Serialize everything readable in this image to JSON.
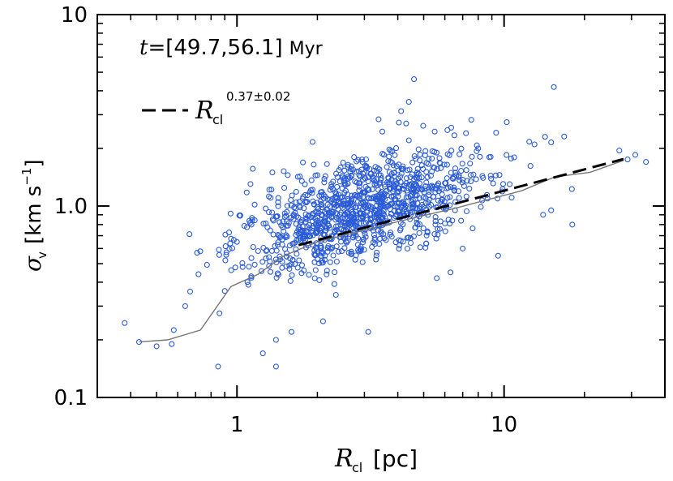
{
  "chart_data": {
    "type": "scatter",
    "title": "",
    "xlabel": {
      "symbol": "R",
      "subscript": "cl",
      "unit": "[pc]"
    },
    "ylabel": {
      "symbol": "σ",
      "subscript": "v",
      "unit_prefix": "[km s",
      "unit_exp": "−1",
      "unit_suffix": "]"
    },
    "xscale": "log",
    "yscale": "log",
    "xlim": [
      0.3,
      40
    ],
    "ylim": [
      0.1,
      10
    ],
    "x_ticks": [
      {
        "value": 1,
        "label": "1"
      },
      {
        "value": 10,
        "label": "10"
      }
    ],
    "y_ticks": [
      {
        "value": 0.1,
        "label": "0.1"
      },
      {
        "value": 1,
        "label": "1.0"
      },
      {
        "value": 10,
        "label": "10"
      }
    ],
    "grid": false,
    "annotation": {
      "prefix": "t",
      "equals": "=",
      "range": "[49.7,56.1]",
      "unit": "Myr"
    },
    "legend": {
      "position": "top-left",
      "entries": [
        {
          "symbol": "R",
          "subscript": "cl",
          "superscript": "0.37±0.02",
          "style": "dashed"
        }
      ]
    },
    "series": [
      {
        "name": "clumps",
        "style": "scatter",
        "marker": "open-circle",
        "color": "#2a5bd7",
        "generator": {
          "count": 1150,
          "log10_x_mean": 0.47,
          "log10_x_sd": 0.22,
          "log10_y_at_x1": -0.19,
          "slope": 0.37,
          "log10_y_scatter_sd": 0.13,
          "seed": 9
        },
        "points": [
          [
            0.38,
            0.245
          ],
          [
            0.43,
            0.195
          ],
          [
            0.5,
            0.185
          ],
          [
            0.57,
            0.19
          ],
          [
            0.58,
            0.225
          ],
          [
            0.64,
            0.3
          ],
          [
            0.85,
            0.145
          ],
          [
            0.86,
            0.275
          ],
          [
            0.9,
            0.36
          ],
          [
            1.0,
            0.65
          ],
          [
            1.05,
            0.48
          ],
          [
            1.25,
            0.17
          ],
          [
            1.4,
            0.145
          ],
          [
            1.4,
            0.2
          ],
          [
            1.55,
            1.45
          ],
          [
            1.6,
            0.22
          ],
          [
            1.75,
            1.35
          ],
          [
            2.0,
            1.45
          ],
          [
            2.1,
            0.25
          ],
          [
            2.6,
            1.6
          ],
          [
            3.1,
            0.22
          ],
          [
            3.5,
            2.45
          ],
          [
            4.3,
            2.7
          ],
          [
            4.4,
            3.5
          ],
          [
            4.6,
            4.6
          ],
          [
            5.5,
            2.45
          ],
          [
            5.6,
            0.42
          ],
          [
            6.3,
            0.45
          ],
          [
            7.0,
            0.6
          ],
          [
            7.2,
            2.4
          ],
          [
            8.0,
            2.0
          ],
          [
            8.8,
            1.8
          ],
          [
            9.5,
            0.55
          ],
          [
            10.5,
            1.3
          ],
          [
            13.0,
            2.1
          ],
          [
            14.0,
            0.9
          ],
          [
            15.0,
            2.15
          ],
          [
            15.0,
            0.95
          ],
          [
            18.0,
            0.8
          ],
          [
            27.0,
            1.95
          ],
          [
            29.0,
            1.75
          ],
          [
            31.0,
            1.85
          ],
          [
            34.0,
            1.7
          ]
        ]
      },
      {
        "name": "median",
        "style": "line",
        "color": "#777777",
        "x": [
          0.43,
          0.55,
          0.73,
          0.95,
          1.2,
          1.5,
          2.0,
          2.7,
          3.6,
          4.8,
          6.5,
          8.7,
          11.6,
          15.5,
          21.0,
          28.0
        ],
        "y": [
          0.195,
          0.2,
          0.225,
          0.38,
          0.44,
          0.55,
          0.65,
          0.72,
          0.8,
          0.88,
          0.97,
          1.08,
          1.2,
          1.42,
          1.5,
          1.73
        ]
      },
      {
        "name": "fit",
        "style": "dashed",
        "color": "#000000",
        "x": [
          1.7,
          28.0
        ],
        "y": [
          0.625,
          1.76
        ]
      }
    ]
  }
}
